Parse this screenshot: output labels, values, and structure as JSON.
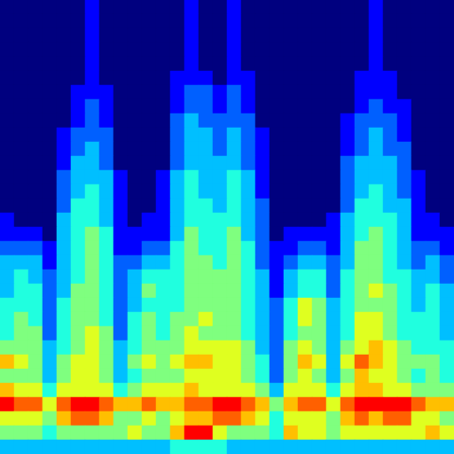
{
  "chart_data": {
    "type": "heatmap",
    "tick_labels": false,
    "grid": false,
    "value_range": [
      0,
      10
    ],
    "cells": [
      [
        0,
        0,
        0,
        0,
        0,
        0,
        1,
        0,
        0,
        0,
        0,
        0,
        0,
        1,
        0,
        0,
        1,
        0,
        0,
        0,
        0,
        0,
        0,
        0,
        0,
        0,
        1,
        0,
        0,
        0,
        0,
        0
      ],
      [
        0,
        0,
        0,
        0,
        0,
        0,
        1,
        0,
        0,
        0,
        0,
        0,
        0,
        1,
        0,
        0,
        1,
        0,
        0,
        0,
        0,
        0,
        0,
        0,
        0,
        0,
        1,
        0,
        0,
        0,
        0,
        0
      ],
      [
        0,
        0,
        0,
        0,
        0,
        0,
        1,
        0,
        0,
        0,
        0,
        0,
        0,
        1,
        0,
        0,
        1,
        0,
        0,
        0,
        0,
        0,
        0,
        0,
        0,
        0,
        1,
        0,
        0,
        0,
        0,
        0
      ],
      [
        0,
        0,
        0,
        0,
        0,
        0,
        1,
        0,
        0,
        0,
        0,
        0,
        0,
        1,
        0,
        0,
        1,
        0,
        0,
        0,
        0,
        0,
        0,
        0,
        0,
        0,
        1,
        0,
        0,
        0,
        0,
        0
      ],
      [
        0,
        0,
        0,
        0,
        0,
        0,
        1,
        0,
        0,
        0,
        0,
        0,
        0,
        1,
        0,
        0,
        1,
        0,
        0,
        0,
        0,
        0,
        0,
        0,
        0,
        0,
        1,
        0,
        0,
        0,
        0,
        0
      ],
      [
        0,
        0,
        0,
        0,
        0,
        0,
        1,
        0,
        0,
        0,
        0,
        0,
        1,
        1,
        1,
        0,
        1,
        1,
        0,
        0,
        0,
        0,
        0,
        0,
        0,
        1,
        1,
        1,
        0,
        0,
        0,
        0
      ],
      [
        0,
        0,
        0,
        0,
        0,
        1,
        1,
        1,
        0,
        0,
        0,
        0,
        1,
        2,
        2,
        1,
        2,
        1,
        0,
        0,
        0,
        0,
        0,
        0,
        0,
        1,
        1,
        1,
        0,
        0,
        0,
        0
      ],
      [
        0,
        0,
        0,
        0,
        0,
        1,
        2,
        1,
        0,
        0,
        0,
        0,
        1,
        2,
        2,
        1,
        2,
        1,
        0,
        0,
        0,
        0,
        0,
        0,
        0,
        1,
        2,
        1,
        1,
        0,
        0,
        0
      ],
      [
        0,
        0,
        0,
        0,
        0,
        1,
        2,
        1,
        0,
        0,
        0,
        0,
        2,
        3,
        2,
        2,
        2,
        2,
        0,
        0,
        0,
        0,
        0,
        0,
        1,
        2,
        2,
        2,
        1,
        0,
        0,
        0
      ],
      [
        0,
        0,
        0,
        0,
        1,
        2,
        2,
        2,
        0,
        0,
        0,
        0,
        2,
        3,
        3,
        2,
        3,
        2,
        1,
        0,
        0,
        0,
        0,
        0,
        1,
        2,
        3,
        2,
        1,
        0,
        0,
        0
      ],
      [
        0,
        0,
        0,
        0,
        1,
        2,
        3,
        2,
        0,
        0,
        0,
        0,
        2,
        3,
        3,
        2,
        3,
        2,
        1,
        0,
        0,
        0,
        0,
        0,
        1,
        2,
        3,
        2,
        2,
        0,
        0,
        0
      ],
      [
        0,
        0,
        0,
        0,
        1,
        3,
        3,
        2,
        0,
        0,
        0,
        0,
        2,
        3,
        3,
        3,
        3,
        2,
        1,
        0,
        0,
        0,
        0,
        0,
        2,
        3,
        3,
        3,
        2,
        0,
        0,
        0
      ],
      [
        0,
        0,
        0,
        0,
        2,
        3,
        3,
        3,
        1,
        0,
        0,
        1,
        3,
        4,
        3,
        3,
        4,
        3,
        1,
        0,
        0,
        0,
        0,
        0,
        2,
        3,
        3,
        3,
        2,
        1,
        0,
        0
      ],
      [
        0,
        0,
        0,
        0,
        2,
        3,
        4,
        3,
        1,
        0,
        0,
        1,
        3,
        4,
        3,
        3,
        4,
        3,
        1,
        0,
        0,
        0,
        0,
        0,
        2,
        3,
        4,
        3,
        2,
        1,
        0,
        0
      ],
      [
        0,
        0,
        0,
        0,
        2,
        4,
        4,
        3,
        1,
        0,
        0,
        1,
        3,
        4,
        4,
        3,
        4,
        3,
        2,
        0,
        0,
        0,
        0,
        0,
        2,
        4,
        4,
        3,
        3,
        1,
        0,
        0
      ],
      [
        1,
        0,
        0,
        0,
        3,
        4,
        4,
        3,
        1,
        0,
        1,
        1,
        3,
        4,
        4,
        4,
        4,
        3,
        2,
        0,
        0,
        0,
        0,
        1,
        3,
        4,
        4,
        4,
        3,
        1,
        1,
        0
      ],
      [
        1,
        1,
        1,
        0,
        3,
        4,
        5,
        4,
        1,
        1,
        1,
        1,
        3,
        5,
        4,
        4,
        5,
        3,
        2,
        0,
        1,
        1,
        1,
        1,
        3,
        4,
        5,
        4,
        3,
        1,
        1,
        1
      ],
      [
        2,
        2,
        2,
        1,
        3,
        4,
        5,
        4,
        1,
        1,
        2,
        2,
        4,
        5,
        4,
        4,
        5,
        4,
        2,
        1,
        1,
        2,
        2,
        1,
        3,
        5,
        5,
        4,
        3,
        2,
        2,
        1
      ],
      [
        3,
        3,
        3,
        1,
        3,
        4,
        5,
        4,
        2,
        2,
        3,
        3,
        4,
        5,
        5,
        4,
        5,
        4,
        2,
        1,
        2,
        3,
        3,
        2,
        3,
        5,
        5,
        4,
        3,
        2,
        3,
        2
      ],
      [
        3,
        4,
        3,
        2,
        3,
        4,
        5,
        4,
        2,
        3,
        4,
        4,
        4,
        5,
        5,
        5,
        5,
        4,
        3,
        1,
        3,
        4,
        4,
        2,
        4,
        5,
        5,
        4,
        4,
        3,
        3,
        2
      ],
      [
        3,
        4,
        4,
        2,
        3,
        5,
        5,
        4,
        2,
        3,
        5,
        4,
        4,
        5,
        5,
        5,
        5,
        4,
        3,
        1,
        3,
        4,
        4,
        2,
        4,
        5,
        6,
        5,
        4,
        3,
        4,
        3
      ],
      [
        4,
        4,
        4,
        2,
        4,
        5,
        5,
        4,
        2,
        3,
        4,
        4,
        4,
        5,
        5,
        5,
        5,
        4,
        3,
        2,
        4,
        6,
        5,
        3,
        4,
        5,
        5,
        5,
        4,
        3,
        4,
        3
      ],
      [
        4,
        5,
        4,
        2,
        4,
        5,
        5,
        4,
        2,
        4,
        5,
        4,
        5,
        5,
        6,
        5,
        5,
        4,
        3,
        2,
        4,
        6,
        5,
        3,
        4,
        6,
        6,
        5,
        4,
        4,
        4,
        3
      ],
      [
        4,
        5,
        5,
        2,
        4,
        5,
        6,
        5,
        2,
        4,
        5,
        4,
        5,
        6,
        5,
        5,
        5,
        4,
        3,
        2,
        4,
        5,
        5,
        3,
        4,
        6,
        6,
        5,
        4,
        4,
        4,
        3
      ],
      [
        5,
        5,
        5,
        3,
        4,
        5,
        6,
        5,
        3,
        4,
        5,
        5,
        5,
        6,
        6,
        6,
        6,
        5,
        3,
        2,
        5,
        6,
        5,
        3,
        5,
        6,
        7,
        6,
        5,
        4,
        4,
        4
      ],
      [
        7,
        6,
        5,
        3,
        5,
        6,
        6,
        5,
        3,
        5,
        6,
        5,
        6,
        7,
        7,
        6,
        6,
        5,
        4,
        2,
        5,
        7,
        6,
        3,
        6,
        8,
        7,
        6,
        5,
        5,
        5,
        4
      ],
      [
        5,
        5,
        5,
        3,
        5,
        6,
        6,
        5,
        3,
        4,
        5,
        5,
        5,
        6,
        6,
        6,
        6,
        5,
        4,
        2,
        5,
        6,
        5,
        3,
        5,
        7,
        6,
        6,
        5,
        4,
        5,
        4
      ],
      [
        7,
        6,
        6,
        4,
        6,
        6,
        6,
        6,
        4,
        5,
        6,
        6,
        6,
        7,
        6,
        6,
        6,
        6,
        5,
        3,
        6,
        6,
        6,
        4,
        6,
        7,
        7,
        6,
        6,
        5,
        5,
        5
      ],
      [
        9,
        8,
        8,
        6,
        8,
        9,
        9,
        8,
        7,
        7,
        8,
        7,
        7,
        8,
        8,
        9,
        9,
        8,
        7,
        5,
        7,
        8,
        8,
        6,
        8,
        9,
        9,
        9,
        9,
        8,
        7,
        7
      ],
      [
        6,
        6,
        6,
        5,
        7,
        8,
        8,
        7,
        5,
        5,
        6,
        5,
        6,
        7,
        7,
        8,
        8,
        7,
        6,
        4,
        6,
        6,
        6,
        5,
        7,
        8,
        7,
        8,
        8,
        6,
        6,
        5
      ],
      [
        5,
        5,
        5,
        4,
        5,
        5,
        5,
        5,
        5,
        6,
        5,
        5,
        7,
        9,
        9,
        6,
        5,
        5,
        5,
        4,
        7,
        6,
        6,
        5,
        6,
        6,
        6,
        6,
        6,
        6,
        7,
        6
      ],
      [
        3,
        3,
        3,
        3,
        3,
        3,
        3,
        3,
        3,
        3,
        3,
        3,
        4,
        4,
        4,
        4,
        3,
        3,
        3,
        3,
        3,
        3,
        3,
        3,
        3,
        3,
        3,
        3,
        3,
        3,
        3,
        3
      ]
    ]
  }
}
